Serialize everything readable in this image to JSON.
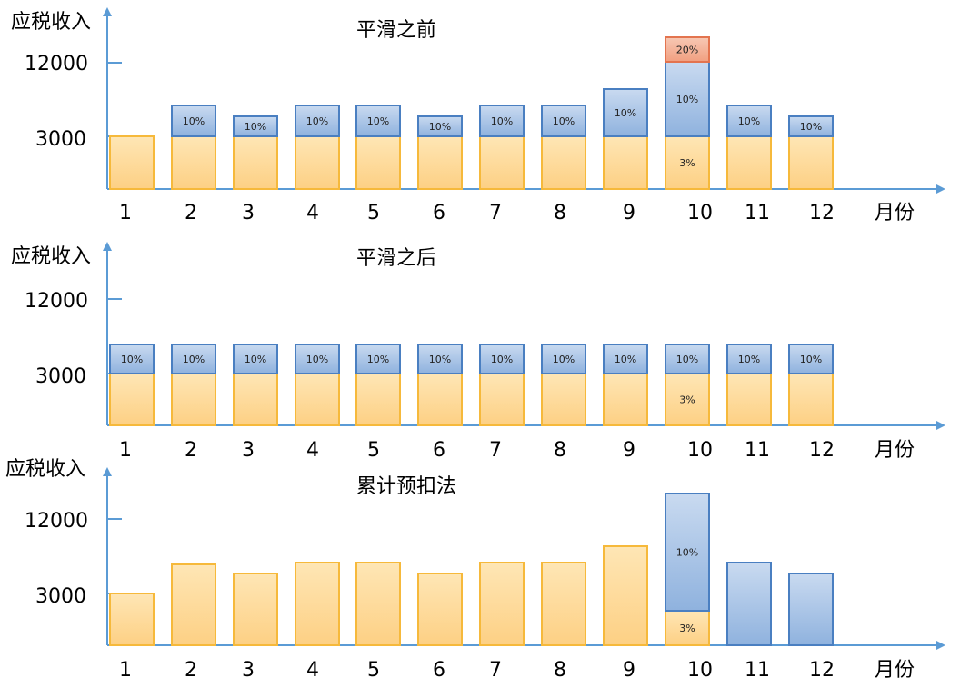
{
  "colors": {
    "axis": "#5b9bd5",
    "base_fill": "#fed992",
    "base_stroke": "#f6b93b",
    "tax10_fill_top": "#c7d7ee",
    "tax10_fill_bottom": "#94b6e0",
    "tax10_stroke": "#4a7fc1",
    "tax20_fill": "#f4b39b",
    "tax20_stroke": "#e3744f"
  },
  "panels": [
    {
      "title": "平滑之前",
      "ylabel": "应税收入",
      "xlabel": "月份",
      "yticks": [
        "12000",
        "3000"
      ],
      "months": [
        "1",
        "2",
        "3",
        "4",
        "5",
        "6",
        "7",
        "8",
        "9",
        "10",
        "11",
        "12"
      ],
      "bars": [
        [
          {
            "h": 58,
            "c": "base",
            "t": ""
          }
        ],
        [
          {
            "h": 58,
            "c": "base",
            "t": ""
          },
          {
            "h": 34,
            "c": "t10",
            "t": "10%"
          }
        ],
        [
          {
            "h": 58,
            "c": "base",
            "t": ""
          },
          {
            "h": 22,
            "c": "t10",
            "t": "10%"
          }
        ],
        [
          {
            "h": 58,
            "c": "base",
            "t": ""
          },
          {
            "h": 34,
            "c": "t10",
            "t": "10%"
          }
        ],
        [
          {
            "h": 58,
            "c": "base",
            "t": ""
          },
          {
            "h": 34,
            "c": "t10",
            "t": "10%"
          }
        ],
        [
          {
            "h": 58,
            "c": "base",
            "t": ""
          },
          {
            "h": 22,
            "c": "t10",
            "t": "10%"
          }
        ],
        [
          {
            "h": 58,
            "c": "base",
            "t": ""
          },
          {
            "h": 34,
            "c": "t10",
            "t": "10%"
          }
        ],
        [
          {
            "h": 58,
            "c": "base",
            "t": ""
          },
          {
            "h": 34,
            "c": "t10",
            "t": "10%"
          }
        ],
        [
          {
            "h": 58,
            "c": "base",
            "t": ""
          },
          {
            "h": 52,
            "c": "t10",
            "t": "10%"
          }
        ],
        [
          {
            "h": 58,
            "c": "base",
            "t": "3%"
          },
          {
            "h": 82,
            "c": "t10",
            "t": "10%"
          },
          {
            "h": 27,
            "c": "t20",
            "t": "20%"
          }
        ],
        [
          {
            "h": 58,
            "c": "base",
            "t": ""
          },
          {
            "h": 34,
            "c": "t10",
            "t": "10%"
          }
        ],
        [
          {
            "h": 58,
            "c": "base",
            "t": ""
          },
          {
            "h": 22,
            "c": "t10",
            "t": "10%"
          }
        ]
      ]
    },
    {
      "title": "平滑之后",
      "ylabel": "应税收入",
      "xlabel": "月份",
      "yticks": [
        "12000",
        "3000"
      ],
      "months": [
        "1",
        "2",
        "3",
        "4",
        "5",
        "6",
        "7",
        "8",
        "9",
        "10",
        "11",
        "12"
      ],
      "bars": [
        [
          {
            "h": 57,
            "c": "base",
            "t": ""
          },
          {
            "h": 32,
            "c": "t10",
            "t": "10%"
          }
        ],
        [
          {
            "h": 57,
            "c": "base",
            "t": ""
          },
          {
            "h": 32,
            "c": "t10",
            "t": "10%"
          }
        ],
        [
          {
            "h": 57,
            "c": "base",
            "t": ""
          },
          {
            "h": 32,
            "c": "t10",
            "t": "10%"
          }
        ],
        [
          {
            "h": 57,
            "c": "base",
            "t": ""
          },
          {
            "h": 32,
            "c": "t10",
            "t": "10%"
          }
        ],
        [
          {
            "h": 57,
            "c": "base",
            "t": ""
          },
          {
            "h": 32,
            "c": "t10",
            "t": "10%"
          }
        ],
        [
          {
            "h": 57,
            "c": "base",
            "t": ""
          },
          {
            "h": 32,
            "c": "t10",
            "t": "10%"
          }
        ],
        [
          {
            "h": 57,
            "c": "base",
            "t": ""
          },
          {
            "h": 32,
            "c": "t10",
            "t": "10%"
          }
        ],
        [
          {
            "h": 57,
            "c": "base",
            "t": ""
          },
          {
            "h": 32,
            "c": "t10",
            "t": "10%"
          }
        ],
        [
          {
            "h": 57,
            "c": "base",
            "t": ""
          },
          {
            "h": 32,
            "c": "t10",
            "t": "10%"
          }
        ],
        [
          {
            "h": 57,
            "c": "base",
            "t": "3%"
          },
          {
            "h": 32,
            "c": "t10",
            "t": "10%"
          }
        ],
        [
          {
            "h": 57,
            "c": "base",
            "t": ""
          },
          {
            "h": 32,
            "c": "t10",
            "t": "10%"
          }
        ],
        [
          {
            "h": 57,
            "c": "base",
            "t": ""
          },
          {
            "h": 32,
            "c": "t10",
            "t": "10%"
          }
        ]
      ]
    },
    {
      "title": "累计预扣法",
      "ylabel": "应税收入",
      "xlabel": "月份",
      "yticks": [
        "12000",
        "3000"
      ],
      "months": [
        "1",
        "2",
        "3",
        "4",
        "5",
        "6",
        "7",
        "8",
        "9",
        "10",
        "11",
        "12"
      ],
      "bars": [
        [
          {
            "h": 57,
            "c": "base",
            "t": ""
          }
        ],
        [
          {
            "h": 89,
            "c": "base",
            "t": ""
          }
        ],
        [
          {
            "h": 79,
            "c": "base",
            "t": ""
          }
        ],
        [
          {
            "h": 91,
            "c": "base",
            "t": ""
          }
        ],
        [
          {
            "h": 91,
            "c": "base",
            "t": ""
          }
        ],
        [
          {
            "h": 79,
            "c": "base",
            "t": ""
          }
        ],
        [
          {
            "h": 91,
            "c": "base",
            "t": ""
          }
        ],
        [
          {
            "h": 91,
            "c": "base",
            "t": ""
          }
        ],
        [
          {
            "h": 109,
            "c": "base",
            "t": ""
          }
        ],
        [
          {
            "h": 38,
            "c": "base",
            "t": "3%"
          },
          {
            "h": 129,
            "c": "t10",
            "t": "10%"
          }
        ],
        [
          {
            "h": 91,
            "c": "t10",
            "t": ""
          }
        ],
        [
          {
            "h": 79,
            "c": "t10",
            "t": ""
          }
        ]
      ]
    }
  ]
}
